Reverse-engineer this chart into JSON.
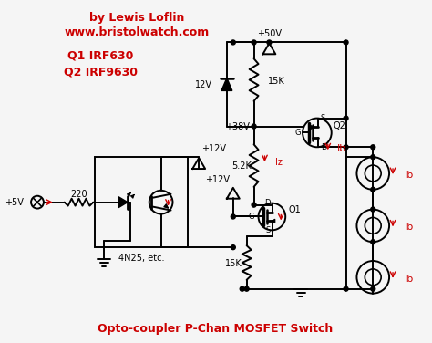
{
  "title": "Opto-coupler P-Chan MOSFET Switch",
  "title_color": "#cc0000",
  "bg_color": "#f5f5f5",
  "line_color": "#000000",
  "red_color": "#cc0000",
  "author": "by Lewis Loflin",
  "website": "www.bristolwatch.com",
  "q1_label": "Q1 IRF630",
  "q2_label": "Q2 IRF9630"
}
